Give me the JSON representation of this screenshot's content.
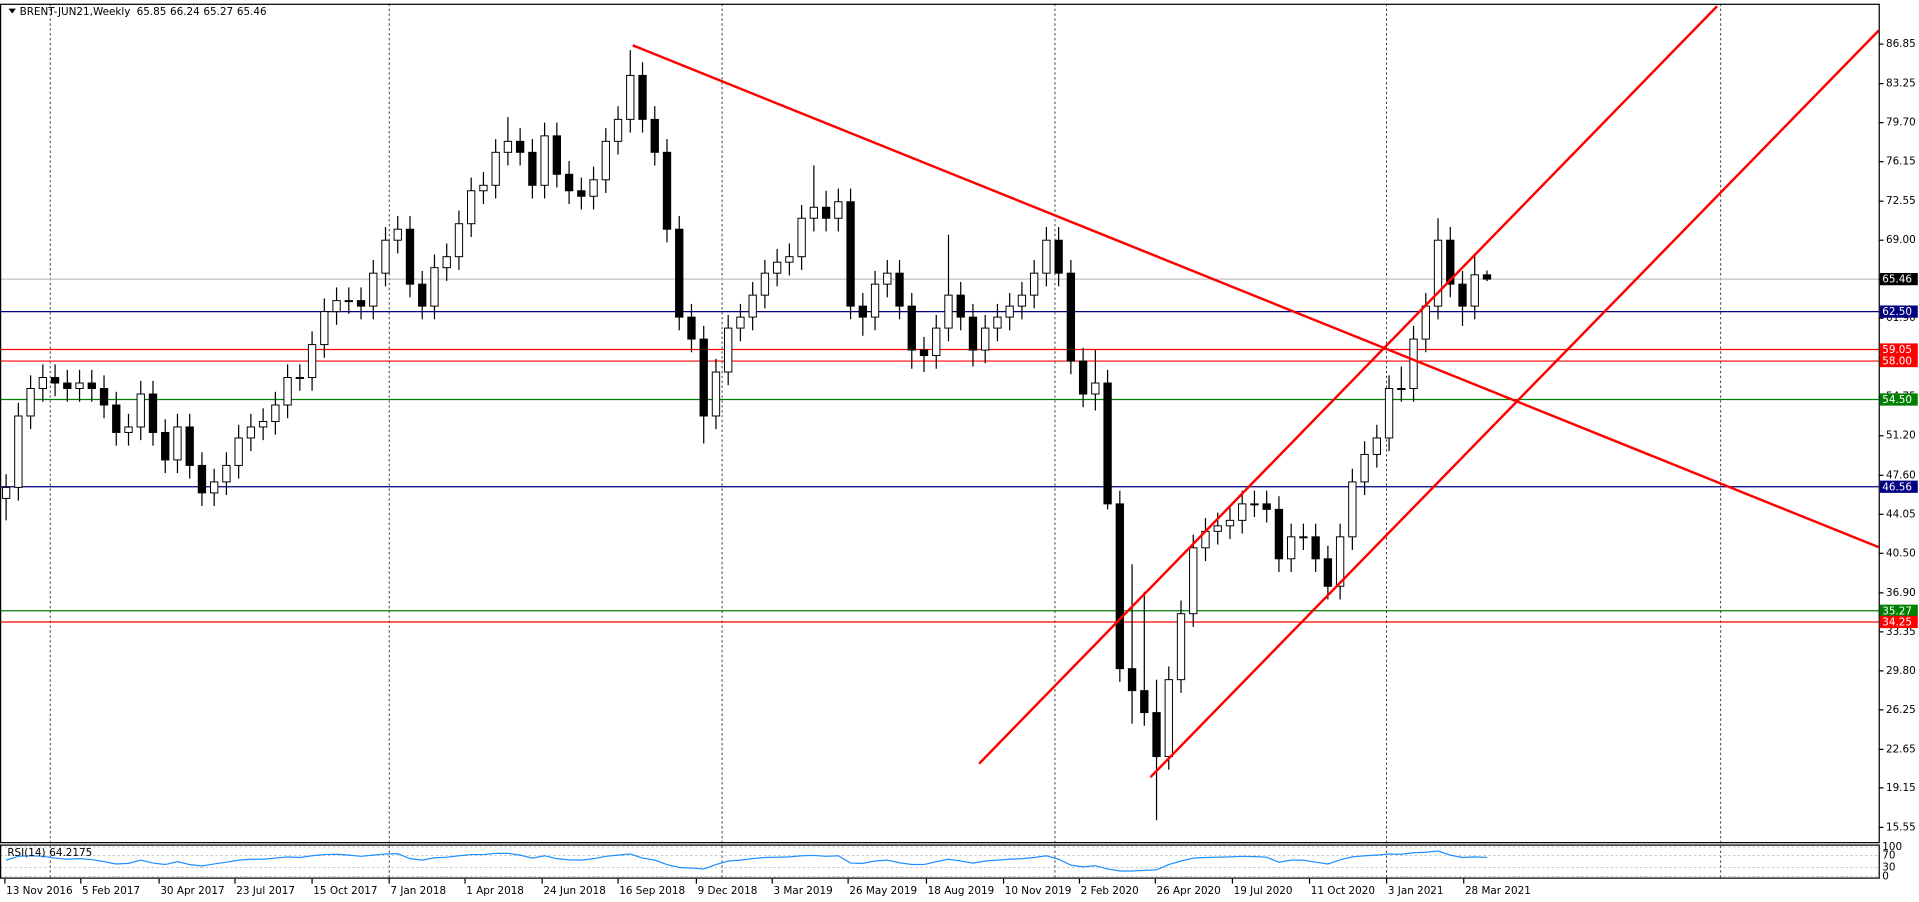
{
  "chart_data": {
    "type": "candlestick",
    "header": {
      "symbol": "BRENT-JUN21,Weekly",
      "ohlc": [
        65.85,
        66.24,
        65.27,
        65.46
      ]
    },
    "xlim": [
      -0.5,
      153
    ],
    "ylim": [
      14.22,
      90.53
    ],
    "yticks": [
      {
        "value": 86.85,
        "label": "86.85"
      },
      {
        "value": 83.25,
        "label": "83.25"
      },
      {
        "value": 79.7,
        "label": "79.70"
      },
      {
        "value": 76.15,
        "label": "76.15"
      },
      {
        "value": 72.55,
        "label": "72.55"
      },
      {
        "value": 69.0,
        "label": "69.00"
      },
      {
        "value": 65.45,
        "label": "65.45"
      },
      {
        "value": 61.9,
        "label": "61.90"
      },
      {
        "value": 58.3,
        "label": "58.30"
      },
      {
        "value": 54.75,
        "label": "54.75"
      },
      {
        "value": 51.2,
        "label": "51.20"
      },
      {
        "value": 47.6,
        "label": "47.60"
      },
      {
        "value": 44.05,
        "label": "44.05"
      },
      {
        "value": 40.5,
        "label": "40.50"
      },
      {
        "value": 36.9,
        "label": "36.90"
      },
      {
        "value": 33.35,
        "label": "33.35"
      },
      {
        "value": 29.8,
        "label": "29.80"
      },
      {
        "value": 26.25,
        "label": "26.25"
      },
      {
        "value": 22.65,
        "label": "22.65"
      },
      {
        "value": 19.15,
        "label": "19.15"
      },
      {
        "value": 15.55,
        "label": "15.55"
      }
    ],
    "xticks": [
      {
        "value": -0.1,
        "label": "13 Nov 2016"
      },
      {
        "value": 6.1,
        "label": "5 Feb 2017"
      },
      {
        "value": 12.5,
        "label": "30 Apr 2017"
      },
      {
        "value": 18.7,
        "label": "23 Jul 2017"
      },
      {
        "value": 25,
        "label": "15 Oct 2017"
      },
      {
        "value": 31.3,
        "label": "7 Jan 2018"
      },
      {
        "value": 37.5,
        "label": "1 Apr 2018"
      },
      {
        "value": 43.8,
        "label": "24 Jun 2018"
      },
      {
        "value": 50,
        "label": "16 Sep 2018"
      },
      {
        "value": 56.4,
        "label": "9 Dec 2018"
      },
      {
        "value": 62.6,
        "label": "3 Mar 2019"
      },
      {
        "value": 68.8,
        "label": "26 May 2019"
      },
      {
        "value": 75.2,
        "label": "18 Aug 2019"
      },
      {
        "value": 81.5,
        "label": "10 Nov 2019"
      },
      {
        "value": 87.7,
        "label": "2 Feb 2020"
      },
      {
        "value": 93.9,
        "label": "26 Apr 2020"
      },
      {
        "value": 100.2,
        "label": "19 Jul 2020"
      },
      {
        "value": 106.5,
        "label": "11 Oct 2020"
      },
      {
        "value": 112.8,
        "label": "3 Jan 2021"
      },
      {
        "value": 119.1,
        "label": "28 Mar 2021"
      }
    ],
    "xgrid": [
      3.6,
      31.3,
      58.5,
      85.7,
      112.8,
      140.1
    ],
    "open": [
      45.5,
      46.5,
      53,
      55.5,
      56.5,
      56,
      55.5,
      56,
      55.5,
      54,
      51.5,
      52,
      55,
      51.5,
      49,
      52,
      48.5,
      46,
      47,
      48.5,
      51,
      52,
      52.5,
      54,
      56.5,
      56.5,
      59.5,
      62.5,
      63.5,
      63.5,
      63,
      66,
      69,
      70,
      65,
      63,
      66.5,
      67.5,
      70.5,
      73.5,
      74,
      77,
      78,
      77,
      74,
      78.5,
      75,
      73.5,
      73,
      74.5,
      78,
      80,
      84,
      80,
      77,
      70,
      62,
      60,
      53,
      57,
      61,
      62,
      64,
      66,
      67,
      67.5,
      71,
      72,
      71,
      72.5,
      63,
      62,
      65,
      66,
      63,
      59,
      58.5,
      61,
      64,
      62,
      59,
      61,
      62,
      63,
      64,
      66,
      69,
      66,
      58,
      55,
      56,
      45,
      30,
      28,
      26,
      22,
      29,
      35,
      41,
      42.5,
      43,
      43.5,
      45,
      45,
      44.5,
      40,
      42,
      42,
      40,
      37.5,
      42,
      47,
      49.5,
      51,
      55.5,
      55.5,
      60,
      63,
      69,
      65,
      63,
      65.85
    ],
    "high": [
      47.7,
      54.2,
      56.7,
      57.7,
      57.7,
      57.2,
      57.2,
      57.2,
      56.7,
      55.2,
      53.2,
      56.2,
      56.2,
      52.7,
      53.2,
      53.2,
      49.7,
      48.2,
      49.7,
      52.2,
      53.2,
      53.7,
      55.2,
      57.7,
      57.7,
      60.7,
      63.7,
      64.7,
      64.7,
      64.7,
      67.2,
      70.2,
      71.2,
      71.2,
      66.2,
      67.7,
      68.7,
      71.7,
      74.7,
      75.2,
      78.2,
      80.2,
      79.2,
      78.2,
      79.7,
      79.7,
      76.2,
      74.7,
      75.7,
      79.2,
      81.2,
      86.3,
      85.2,
      81.2,
      78.2,
      71.2,
      63.2,
      61.2,
      58.2,
      62.2,
      63.2,
      65.2,
      67.2,
      68.2,
      68.7,
      72.2,
      75.8,
      73.5,
      73.7,
      73.7,
      64.2,
      66.2,
      67.2,
      67.2,
      64.2,
      60.2,
      62.2,
      69.5,
      65.2,
      63.2,
      62.2,
      63.2,
      64.2,
      65.2,
      67.2,
      70.2,
      70.2,
      67.2,
      59.2,
      59,
      57.2,
      46.2,
      39.5,
      37,
      29,
      30.2,
      36.2,
      42.2,
      43.7,
      44.2,
      44.7,
      46.2,
      46.2,
      46.2,
      45.7,
      43.2,
      43.2,
      43.2,
      41.2,
      43.2,
      48.2,
      50.7,
      52.2,
      56.7,
      57.5,
      61.2,
      64.2,
      71,
      70.2,
      66.2,
      67.8,
      66.24
    ],
    "low": [
      43.5,
      45.3,
      51.8,
      54.3,
      54.8,
      54.3,
      54.3,
      54.3,
      52.8,
      50.3,
      50.3,
      50.8,
      50.3,
      47.8,
      47.8,
      47.3,
      44.8,
      44.8,
      45.8,
      47.3,
      49.8,
      50.8,
      51.3,
      52.8,
      55.3,
      55.3,
      58.3,
      61.3,
      62.3,
      61.8,
      61.8,
      64.8,
      67.8,
      63.8,
      61.8,
      61.8,
      65.3,
      66.3,
      69.3,
      72.3,
      72.8,
      75.8,
      75.8,
      72.8,
      72.8,
      73.8,
      72.3,
      71.8,
      71.8,
      73.3,
      76.8,
      78.8,
      78.8,
      75.8,
      68.8,
      60.8,
      58.8,
      50.5,
      51.8,
      55.8,
      59.8,
      60.8,
      62.8,
      64.8,
      65.8,
      66.3,
      69.8,
      69.8,
      69.8,
      61.8,
      60.3,
      60.8,
      63.8,
      61.8,
      57.3,
      57,
      57.3,
      59.8,
      60.8,
      57.5,
      57.8,
      59.8,
      60.8,
      61.8,
      62.8,
      64.8,
      64.8,
      56.8,
      53.8,
      53.5,
      44.5,
      28.8,
      25,
      24.8,
      16.2,
      20.8,
      27.8,
      33.8,
      39.8,
      41.3,
      41.8,
      42.3,
      43.8,
      43.3,
      38.8,
      38.8,
      40.8,
      38.8,
      36.3,
      36.3,
      40.8,
      45.8,
      48.3,
      49.8,
      54.3,
      54.3,
      58.8,
      61.8,
      63.8,
      61.2,
      61.8,
      65.27
    ],
    "close": [
      46.5,
      53,
      55.5,
      56.5,
      56,
      55.5,
      56,
      55.5,
      54,
      51.5,
      52,
      55,
      51.5,
      49,
      52,
      48.5,
      46,
      47,
      48.5,
      51,
      52,
      52.5,
      54,
      56.5,
      56.5,
      59.5,
      62.5,
      63.5,
      63.5,
      63,
      66,
      69,
      70,
      65,
      63,
      66.5,
      67.5,
      70.5,
      73.5,
      74,
      77,
      78,
      77,
      74,
      78.5,
      75,
      73.5,
      73,
      74.5,
      78,
      80,
      84,
      80,
      77,
      70,
      62,
      60,
      53,
      57,
      61,
      62,
      64,
      66,
      67,
      67.5,
      71,
      72,
      71,
      72.5,
      63,
      62,
      65,
      66,
      63,
      59,
      58.5,
      61,
      64,
      62,
      59,
      61,
      62,
      63,
      64,
      66,
      69,
      66,
      58,
      55,
      56,
      45,
      30,
      28,
      26,
      22,
      29,
      35,
      41,
      42.5,
      43,
      43.5,
      45,
      45,
      44.5,
      40,
      42,
      42,
      40,
      37.5,
      42,
      47,
      49.5,
      51,
      55.5,
      55.5,
      60,
      63,
      69,
      65,
      63,
      65.85,
      65.46
    ],
    "bull_color": "#ffffff",
    "bear_color": "#000000",
    "levels": [
      {
        "value": 65.46,
        "label": "65.46",
        "color": "#000000",
        "line_color": "#c0c0c0"
      },
      {
        "value": 62.5,
        "label": "62.50",
        "color": "#000080"
      },
      {
        "value": 59.05,
        "label": "59.05",
        "color": "#ff0000"
      },
      {
        "value": 58.0,
        "label": "58.00",
        "color": "#ff0000"
      },
      {
        "value": 54.5,
        "label": "54.50",
        "color": "#008000"
      },
      {
        "value": 46.56,
        "label": "46.56",
        "color": "#000080"
      },
      {
        "value": 35.27,
        "label": "35.27",
        "color": "#008000"
      },
      {
        "value": 34.25,
        "label": "34.25",
        "color": "#ff0000"
      }
    ],
    "lines": [
      {
        "color": "#ff0000",
        "x": [
          51.2,
          153
        ],
        "y": [
          86.74,
          41.06
        ]
      },
      {
        "color": "#ff0000",
        "x": [
          79.5,
          139.8
        ],
        "y": [
          21.35,
          90.3
        ]
      },
      {
        "color": "#ff0000",
        "x": [
          93.5,
          153
        ],
        "y": [
          20.12,
          88.08
        ]
      }
    ],
    "rsi": {
      "name": "RSI(14)",
      "color": "#1e90ff",
      "ylim": [
        0,
        100
      ],
      "yticks": [
        100,
        70,
        30,
        0
      ],
      "values": [
        55,
        68,
        70,
        68,
        62,
        58,
        60,
        57,
        50,
        42,
        44,
        55,
        45,
        40,
        50,
        40,
        35,
        42,
        48,
        55,
        58,
        58,
        62,
        66,
        64,
        70,
        74,
        75,
        72,
        68,
        72,
        76,
        77,
        60,
        55,
        63,
        65,
        70,
        74,
        74,
        78,
        78,
        72,
        62,
        70,
        60,
        56,
        55,
        60,
        68,
        72,
        76,
        62,
        55,
        40,
        30,
        28,
        25,
        40,
        52,
        55,
        60,
        64,
        65,
        66,
        70,
        71,
        68,
        70,
        45,
        44,
        52,
        55,
        46,
        40,
        40,
        50,
        58,
        52,
        45,
        52,
        55,
        58,
        60,
        64,
        70,
        58,
        38,
        32,
        36,
        25,
        18,
        18,
        20,
        22,
        40,
        52,
        62,
        64,
        65,
        66,
        68,
        67,
        65,
        48,
        55,
        55,
        48,
        42,
        56,
        66,
        70,
        72,
        76,
        75,
        80,
        82,
        86,
        72,
        64,
        66,
        64.2175
      ]
    }
  }
}
